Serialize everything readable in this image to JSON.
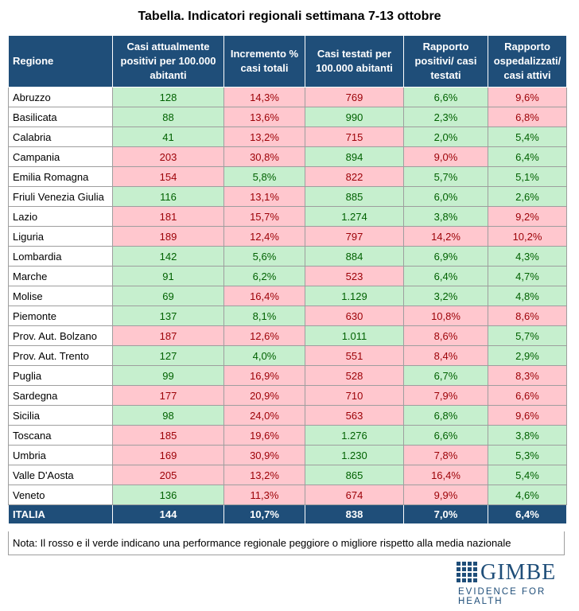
{
  "title": "Tabella. Indicatori regionali settimana 7-13 ottobre",
  "table": {
    "headers": [
      "Regione",
      "Casi attualmente positivi per 100.000 abitanti",
      "Incremento % casi totali",
      "Casi testati per 100.000 abitanti",
      "Rapporto positivi/ casi testati",
      "Rapporto ospedalizzati/ casi attivi"
    ],
    "rows": [
      [
        "Abruzzo",
        "128",
        "14,3%",
        "769",
        "6,6%",
        "9,6%"
      ],
      [
        "Basilicata",
        "88",
        "13,6%",
        "990",
        "2,3%",
        "6,8%"
      ],
      [
        "Calabria",
        "41",
        "13,2%",
        "715",
        "2,0%",
        "5,4%"
      ],
      [
        "Campania",
        "203",
        "30,8%",
        "894",
        "9,0%",
        "6,4%"
      ],
      [
        "Emilia Romagna",
        "154",
        "5,8%",
        "822",
        "5,7%",
        "5,1%"
      ],
      [
        "Friuli Venezia Giulia",
        "116",
        "13,1%",
        "885",
        "6,0%",
        "2,6%"
      ],
      [
        "Lazio",
        "181",
        "15,7%",
        "1.274",
        "3,8%",
        "9,2%"
      ],
      [
        "Liguria",
        "189",
        "12,4%",
        "797",
        "14,2%",
        "10,2%"
      ],
      [
        "Lombardia",
        "142",
        "5,6%",
        "884",
        "6,9%",
        "4,3%"
      ],
      [
        "Marche",
        "91",
        "6,2%",
        "523",
        "6,4%",
        "4,7%"
      ],
      [
        "Molise",
        "69",
        "16,4%",
        "1.129",
        "3,2%",
        "4,8%"
      ],
      [
        "Piemonte",
        "137",
        "8,1%",
        "630",
        "10,8%",
        "8,6%"
      ],
      [
        "Prov. Aut. Bolzano",
        "187",
        "12,6%",
        "1.011",
        "8,6%",
        "5,7%"
      ],
      [
        "Prov. Aut. Trento",
        "127",
        "4,0%",
        "551",
        "8,4%",
        "2,9%"
      ],
      [
        "Puglia",
        "99",
        "16,9%",
        "528",
        "6,7%",
        "8,3%"
      ],
      [
        "Sardegna",
        "177",
        "20,9%",
        "710",
        "7,9%",
        "6,6%"
      ],
      [
        "Sicilia",
        "98",
        "24,0%",
        "563",
        "6,8%",
        "9,6%"
      ],
      [
        "Toscana",
        "185",
        "19,6%",
        "1.276",
        "6,6%",
        "3,8%"
      ],
      [
        "Umbria",
        "169",
        "30,9%",
        "1.230",
        "7,8%",
        "5,3%"
      ],
      [
        "Valle D'Aosta",
        "205",
        "13,2%",
        "865",
        "16,4%",
        "5,4%"
      ],
      [
        "Veneto",
        "136",
        "11,3%",
        "674",
        "9,9%",
        "4,6%"
      ]
    ],
    "status": [
      [
        "g",
        "r",
        "r",
        "g",
        "r"
      ],
      [
        "g",
        "r",
        "g",
        "g",
        "r"
      ],
      [
        "g",
        "r",
        "r",
        "g",
        "g"
      ],
      [
        "r",
        "r",
        "g",
        "r",
        "g"
      ],
      [
        "r",
        "g",
        "r",
        "g",
        "g"
      ],
      [
        "g",
        "r",
        "g",
        "g",
        "g"
      ],
      [
        "r",
        "r",
        "g",
        "g",
        "r"
      ],
      [
        "r",
        "r",
        "r",
        "r",
        "r"
      ],
      [
        "g",
        "g",
        "g",
        "g",
        "g"
      ],
      [
        "g",
        "g",
        "r",
        "g",
        "g"
      ],
      [
        "g",
        "r",
        "g",
        "g",
        "g"
      ],
      [
        "g",
        "g",
        "r",
        "r",
        "r"
      ],
      [
        "r",
        "r",
        "g",
        "r",
        "g"
      ],
      [
        "g",
        "g",
        "r",
        "r",
        "g"
      ],
      [
        "g",
        "r",
        "r",
        "g",
        "r"
      ],
      [
        "r",
        "r",
        "r",
        "r",
        "r"
      ],
      [
        "g",
        "r",
        "r",
        "g",
        "r"
      ],
      [
        "r",
        "r",
        "g",
        "g",
        "g"
      ],
      [
        "r",
        "r",
        "g",
        "r",
        "g"
      ],
      [
        "r",
        "r",
        "g",
        "r",
        "g"
      ],
      [
        "g",
        "r",
        "r",
        "r",
        "g"
      ]
    ],
    "total": [
      "ITALIA",
      "144",
      "10,7%",
      "838",
      "7,0%",
      "6,4%"
    ]
  },
  "note": "Nota: Il rosso e il verde indicano una performance regionale peggiore o migliore rispetto alla media nazionale",
  "logo": {
    "name": "GIMBE",
    "tagline": "EVIDENCE FOR HEALTH"
  },
  "colors": {
    "header": "#1f4e79",
    "better": "#c6efce",
    "worse": "#ffc7ce"
  }
}
